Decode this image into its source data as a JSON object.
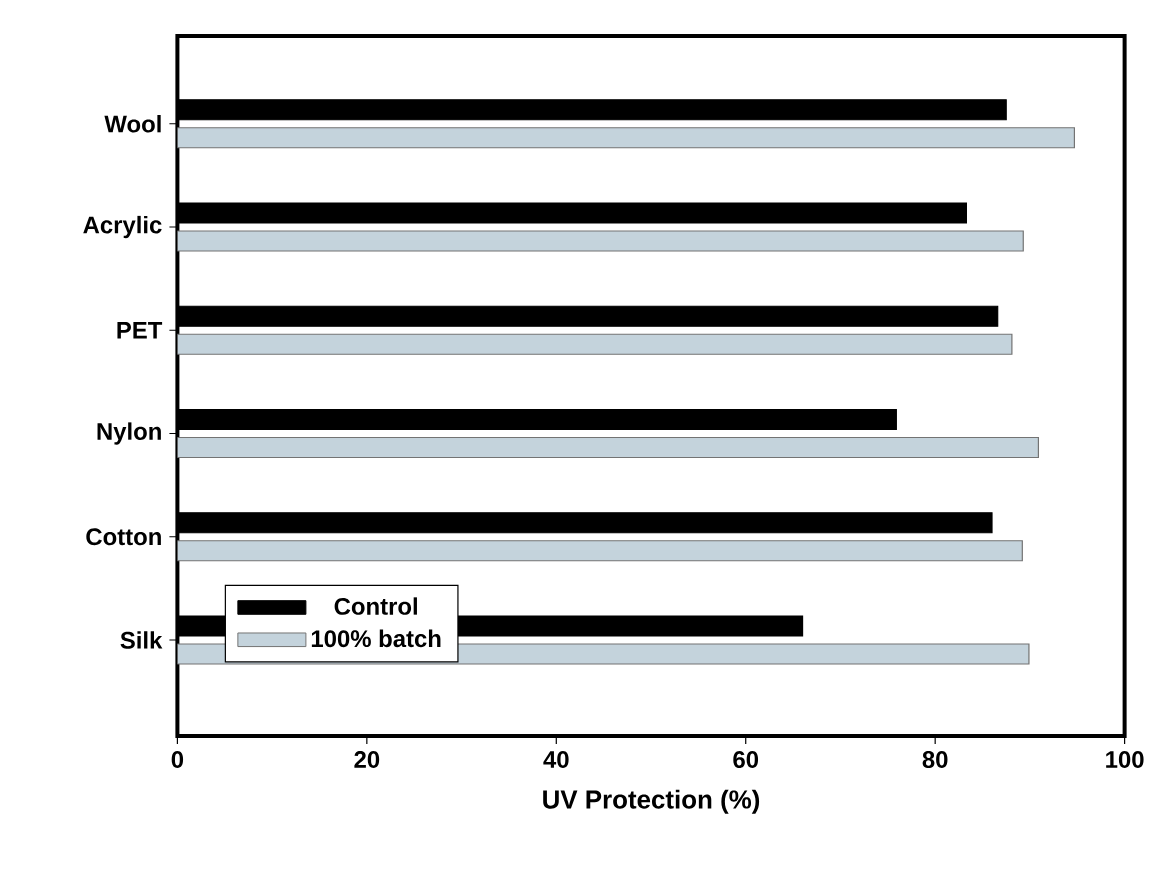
{
  "chart_data": {
    "type": "bar",
    "orientation": "horizontal",
    "xlabel": "UV Protection (%)",
    "categories": [
      "Wool",
      "Acrylic",
      "PET",
      "Nylon",
      "Cotton",
      "Silk"
    ],
    "series": [
      {
        "name": "Control",
        "color": "#000000",
        "values": [
          87.5,
          83.3,
          86.6,
          75.9,
          86.0,
          66.0
        ]
      },
      {
        "name": "100% batch",
        "color": "#c4d3dc",
        "values": [
          94.7,
          89.3,
          88.1,
          90.9,
          89.2,
          89.9
        ]
      }
    ],
    "xlim": [
      0,
      100
    ],
    "xticks": [
      0,
      20,
      40,
      60,
      80,
      100
    ],
    "legend": "bottom left"
  }
}
